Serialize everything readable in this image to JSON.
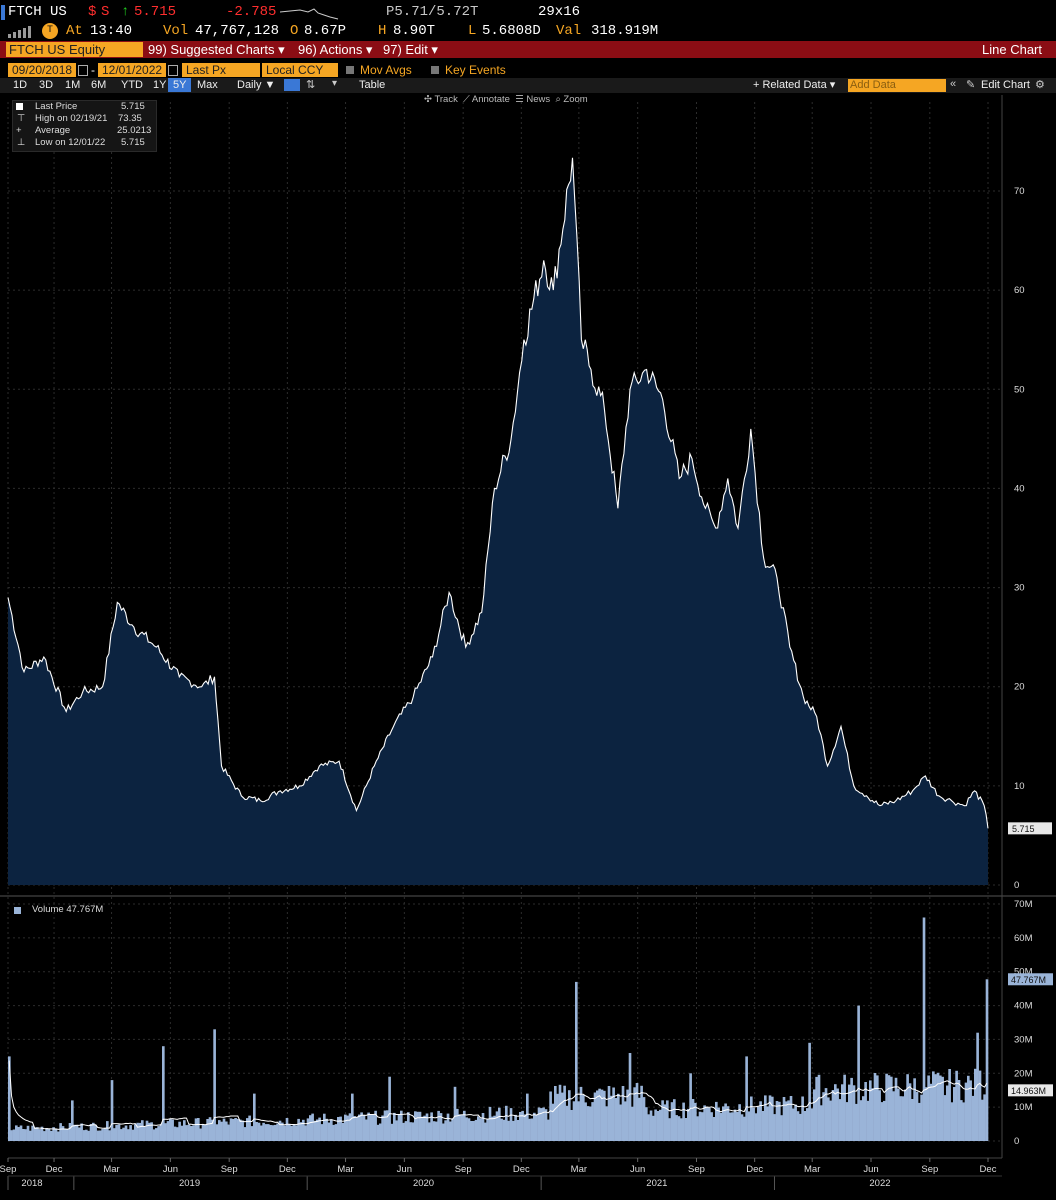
{
  "header": {
    "ticker": "FTCH US",
    "currency": "$",
    "exch": "S",
    "arrow": "↑",
    "last": "5.715",
    "change": "-2.785",
    "bid_ask": "P5.71/5.72T",
    "size": "29x16",
    "time_label": "At",
    "time": "13:40",
    "vol_label": "Vol",
    "volume": "47,767,128",
    "open_label": "O",
    "open": "8.67P",
    "high_label": "H",
    "high": "8.90T",
    "low_label": "L",
    "low": "5.6808D",
    "val_label": "Val",
    "value": "318.919M"
  },
  "menu": {
    "security": "FTCH US Equity",
    "suggested": "99) Suggested Charts ▾",
    "actions": "96) Actions ▾",
    "edit": "97) Edit ▾",
    "chart_type": "Line Chart"
  },
  "controls": {
    "start_date": "09/20/2018",
    "end_date": "12/01/2022",
    "field": "Last Px",
    "currency": "Local CCY",
    "mov_avgs": "Mov Avgs",
    "key_events": "Key Events"
  },
  "periods": [
    "1D",
    "3D",
    "1M",
    "6M",
    "YTD",
    "1Y",
    "5Y",
    "Max"
  ],
  "selected_period": "5Y",
  "freq": "Daily ▼",
  "table_label": "Table",
  "related": "+ Related Data ▾",
  "add_data_placeholder": "Add Data",
  "edit_chart": "Edit Chart",
  "tools": {
    "track": "Track",
    "annotate": "Annotate",
    "news": "News",
    "zoom": "Zoom"
  },
  "legend": {
    "last_label": "Last Price",
    "last_val": "5.715",
    "high_label": "High on 02/19/21",
    "high_val": "73.35",
    "avg_label": "Average",
    "avg_val": "25.0213",
    "low_label": "Low on 12/01/22",
    "low_val": "5.715"
  },
  "volume_legend": "Volume 47.767M",
  "colors": {
    "fill": "#0c2340",
    "line": "#ffffff",
    "accent": "#f5a623",
    "menu_bar": "#8b0d14",
    "volume_bar": "#9ab4d8"
  },
  "chart_data": {
    "type": "area",
    "price": {
      "x": [
        "2018-09-20",
        "2018-10-15",
        "2018-11-15",
        "2018-12-20",
        "2019-01-15",
        "2019-02-15",
        "2019-03-10",
        "2019-04-05",
        "2019-05-10",
        "2019-06-15",
        "2019-07-20",
        "2019-08-09",
        "2019-08-20",
        "2019-09-20",
        "2019-10-20",
        "2019-11-20",
        "2019-12-20",
        "2020-01-20",
        "2020-02-20",
        "2020-03-18",
        "2020-04-15",
        "2020-05-15",
        "2020-06-15",
        "2020-07-15",
        "2020-08-10",
        "2020-09-05",
        "2020-09-30",
        "2020-10-20",
        "2020-11-15",
        "2020-12-05",
        "2021-01-05",
        "2021-01-20",
        "2021-02-19",
        "2021-03-05",
        "2021-03-20",
        "2021-04-10",
        "2021-05-01",
        "2021-05-20",
        "2021-06-15",
        "2021-07-10",
        "2021-08-05",
        "2021-08-25",
        "2021-09-15",
        "2021-10-01",
        "2021-10-20",
        "2021-11-05",
        "2021-11-25",
        "2021-12-15",
        "2022-01-05",
        "2022-01-25",
        "2022-02-15",
        "2022-03-08",
        "2022-03-25",
        "2022-04-15",
        "2022-05-05",
        "2022-05-25",
        "2022-06-15",
        "2022-07-10",
        "2022-08-05",
        "2022-08-25",
        "2022-09-15",
        "2022-10-05",
        "2022-10-25",
        "2022-11-10",
        "2022-11-25",
        "2022-12-01"
      ],
      "y": [
        29.0,
        21.5,
        23.0,
        17.5,
        19.5,
        20.0,
        28.5,
        26.0,
        24.0,
        21.0,
        20.0,
        21.0,
        12.0,
        9.0,
        8.5,
        9.5,
        10.0,
        12.0,
        12.5,
        7.5,
        12.0,
        16.0,
        19.0,
        23.0,
        29.5,
        24.0,
        27.5,
        40.0,
        45.0,
        55.0,
        63.0,
        60.0,
        73.35,
        55.0,
        52.0,
        48.0,
        38.0,
        50.0,
        52.0,
        49.0,
        41.0,
        43.0,
        38.0,
        36.0,
        41.0,
        36.0,
        46.0,
        33.0,
        31.0,
        24.0,
        19.0,
        17.0,
        12.0,
        16.0,
        10.0,
        9.0,
        8.0,
        8.5,
        9.5,
        11.0,
        9.0,
        8.5,
        8.0,
        9.5,
        8.0,
        5.715
      ],
      "ylim": [
        0,
        75
      ],
      "yticks": [
        0,
        10,
        20,
        30,
        40,
        50,
        60,
        70
      ],
      "current_tag": "5.715"
    },
    "volume": {
      "ylim": [
        0,
        70
      ],
      "yticks_labels": [
        "0",
        "10M",
        "20M",
        "30M",
        "40M",
        "50M",
        "60M",
        "70M"
      ],
      "yticks": [
        0,
        10,
        20,
        30,
        40,
        50,
        60,
        70
      ],
      "spikes": [
        {
          "x": "2018-09-20",
          "v": 25
        },
        {
          "x": "2018-12-28",
          "v": 12
        },
        {
          "x": "2019-02-28",
          "v": 18
        },
        {
          "x": "2019-05-20",
          "v": 28
        },
        {
          "x": "2019-08-09",
          "v": 33
        },
        {
          "x": "2019-10-10",
          "v": 14
        },
        {
          "x": "2020-03-10",
          "v": 14
        },
        {
          "x": "2020-05-10",
          "v": 19
        },
        {
          "x": "2020-08-20",
          "v": 16
        },
        {
          "x": "2020-12-10",
          "v": 14
        },
        {
          "x": "2021-02-25",
          "v": 47
        },
        {
          "x": "2021-05-20",
          "v": 26
        },
        {
          "x": "2021-08-25",
          "v": 20
        },
        {
          "x": "2021-11-20",
          "v": 25
        },
        {
          "x": "2022-02-25",
          "v": 29
        },
        {
          "x": "2022-05-15",
          "v": 40
        },
        {
          "x": "2022-08-25",
          "v": 66
        },
        {
          "x": "2022-11-15",
          "v": 32
        },
        {
          "x": "2022-12-01",
          "v": 47.767
        }
      ],
      "current_tag": "47.767M",
      "avg_tag": "14.963M"
    },
    "x_ticks": [
      "Sep",
      "Dec",
      "Mar",
      "Jun",
      "Sep",
      "Dec",
      "Mar",
      "Jun",
      "Sep",
      "Dec",
      "Mar",
      "Jun",
      "Sep",
      "Dec",
      "Mar",
      "Jun",
      "Sep",
      "Dec"
    ],
    "x_years": [
      "2018",
      "2019",
      "2020",
      "2021",
      "2022"
    ]
  }
}
